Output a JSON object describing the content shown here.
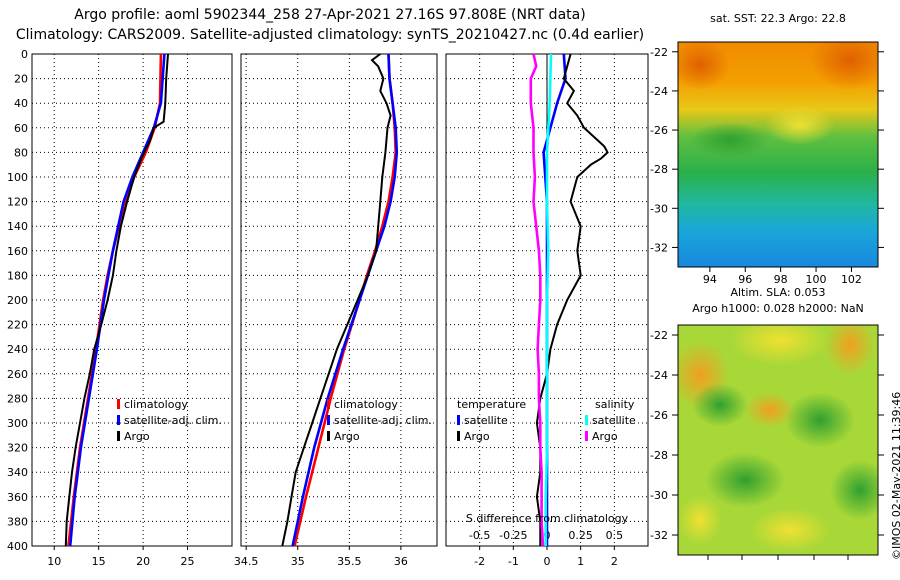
{
  "title_line1": "Argo profile: aoml 5902344_258 27-Apr-2021 27.16S 97.808E (NRT data)",
  "title_line2": "Climatology: CARS2009. Satellite-adjusted climatology: synTS_20210427.nc (0.4d earlier)",
  "colors": {
    "climatology": "#ff0000",
    "satellite_adj": "#0000ff",
    "argo": "#000000",
    "temp_sat": "#0000ff",
    "sal_sat": "#00ffff",
    "sal_argo": "#ff00ff"
  },
  "chart_data": [
    {
      "type": "line",
      "id": "temperature",
      "ylabel": "depth",
      "ylim": [
        400,
        0
      ],
      "xlim": [
        7.5,
        30
      ],
      "yticks": [
        0,
        20,
        40,
        60,
        80,
        100,
        120,
        140,
        160,
        180,
        200,
        220,
        240,
        260,
        280,
        300,
        320,
        340,
        360,
        380,
        400
      ],
      "xticks": [
        10,
        15,
        20,
        25
      ],
      "series": [
        {
          "name": "climatology",
          "color": "#ff0000",
          "depth": [
            0,
            40,
            60,
            80,
            100,
            120,
            140,
            160,
            180,
            200,
            240,
            280,
            320,
            360,
            400
          ],
          "values": [
            22.0,
            21.9,
            21.3,
            20.3,
            19.0,
            18.0,
            17.3,
            16.6,
            16.0,
            15.5,
            14.7,
            13.8,
            12.9,
            12.2,
            11.6
          ]
        },
        {
          "name": "satellite-adj. clim.",
          "color": "#0000ff",
          "depth": [
            0,
            40,
            60,
            80,
            100,
            120,
            140,
            160,
            180,
            200,
            240,
            280,
            320,
            360,
            400
          ],
          "values": [
            22.4,
            22.0,
            21.2,
            20.0,
            18.8,
            17.8,
            17.2,
            16.6,
            16.1,
            15.6,
            14.8,
            13.9,
            13.0,
            12.3,
            11.8
          ]
        },
        {
          "name": "Argo",
          "color": "#000000",
          "depth": [
            0,
            20,
            40,
            55,
            60,
            70,
            85,
            100,
            120,
            140,
            160,
            180,
            200,
            220,
            240,
            260,
            280,
            300,
            320,
            340,
            360,
            380,
            400
          ],
          "values": [
            22.8,
            22.6,
            22.5,
            22.3,
            21.2,
            20.8,
            19.8,
            19.0,
            18.2,
            17.5,
            17.0,
            16.6,
            16.0,
            15.3,
            14.5,
            14.0,
            13.4,
            12.9,
            12.4,
            12.0,
            11.7,
            11.4,
            11.3
          ]
        }
      ],
      "legend": [
        "climatology",
        "satellite-adj. clim.",
        "Argo"
      ]
    },
    {
      "type": "line",
      "id": "salinity",
      "ylim": [
        400,
        0
      ],
      "xlim": [
        34.45,
        36.35
      ],
      "xticks": [
        34.5,
        35,
        35.5,
        36
      ],
      "series": [
        {
          "name": "climatology",
          "color": "#ff0000",
          "depth": [
            0,
            20,
            40,
            60,
            80,
            100,
            120,
            140,
            160,
            180,
            200,
            240,
            280,
            320,
            360,
            400
          ],
          "values": [
            35.88,
            35.89,
            35.92,
            35.94,
            35.95,
            35.92,
            35.88,
            35.82,
            35.75,
            35.67,
            35.6,
            35.45,
            35.32,
            35.2,
            35.08,
            34.97
          ]
        },
        {
          "name": "satellite-adj. clim.",
          "color": "#0000ff",
          "depth": [
            0,
            20,
            40,
            60,
            80,
            100,
            120,
            140,
            160,
            180,
            200,
            240,
            280,
            320,
            360,
            400
          ],
          "values": [
            35.88,
            35.89,
            35.92,
            35.95,
            35.96,
            35.94,
            35.9,
            35.84,
            35.76,
            35.68,
            35.6,
            35.44,
            35.29,
            35.16,
            35.05,
            34.95
          ]
        },
        {
          "name": "Argo",
          "color": "#000000",
          "depth": [
            0,
            5,
            10,
            20,
            30,
            40,
            50,
            60,
            80,
            100,
            120,
            140,
            160,
            180,
            200,
            220,
            240,
            260,
            280,
            300,
            320,
            340,
            360,
            380,
            400
          ],
          "values": [
            35.8,
            35.72,
            35.78,
            35.83,
            35.8,
            35.86,
            35.9,
            35.87,
            35.85,
            35.82,
            35.8,
            35.78,
            35.76,
            35.68,
            35.58,
            35.48,
            35.38,
            35.3,
            35.22,
            35.14,
            35.06,
            34.98,
            34.94,
            34.9,
            34.85
          ]
        }
      ],
      "legend": [
        "climatology",
        "satellite-adj. clim.",
        "Argo"
      ]
    },
    {
      "type": "line",
      "id": "differences",
      "ylim": [
        400,
        0
      ],
      "xlim": [
        -3,
        3
      ],
      "xticks": [
        -2,
        -1,
        0,
        1,
        2
      ],
      "top_xticks": [
        -0.5,
        -0.25,
        0,
        0.25,
        0.5
      ],
      "top_axis_label": "S difference from climatology",
      "series": [
        {
          "name": "temperature satellite",
          "color": "#0000ff",
          "depth": [
            0,
            20,
            40,
            60,
            80,
            100,
            120,
            140,
            160,
            200,
            260,
            320,
            400
          ],
          "values": [
            0.5,
            0.55,
            0.3,
            0.1,
            -0.1,
            -0.05,
            0.0,
            0.0,
            0.0,
            0.0,
            0.0,
            0.0,
            0.0
          ]
        },
        {
          "name": "temperature Argo",
          "color": "#000000",
          "depth": [
            0,
            10,
            20,
            30,
            40,
            50,
            60,
            70,
            75,
            80,
            85,
            90,
            100,
            120,
            140,
            160,
            180,
            200,
            220,
            240,
            260,
            280,
            300,
            320,
            340,
            360,
            380,
            400
          ],
          "values": [
            0.7,
            0.6,
            0.5,
            0.8,
            0.6,
            0.9,
            1.1,
            1.5,
            1.7,
            1.8,
            1.6,
            1.3,
            0.9,
            0.7,
            1.0,
            0.9,
            1.0,
            0.6,
            0.3,
            0.1,
            0.0,
            -0.2,
            -0.3,
            -0.2,
            -0.2,
            -0.3,
            -0.2,
            -0.2
          ]
        },
        {
          "name": "salinity satellite",
          "color": "#00ffff",
          "depth": [
            0,
            40,
            80,
            120,
            160,
            200,
            240,
            280,
            320,
            360,
            400
          ],
          "values": [
            0.03,
            0.02,
            0.0,
            0.0,
            0.01,
            0.0,
            0.0,
            0.0,
            0.0,
            -0.01,
            -0.01
          ]
        },
        {
          "name": "salinity Argo",
          "color": "#ff00ff",
          "depth": [
            0,
            10,
            20,
            40,
            60,
            80,
            100,
            120,
            140,
            160,
            180,
            200,
            220,
            240,
            260,
            280,
            300,
            320,
            340,
            360,
            380,
            400
          ],
          "values": [
            -0.1,
            -0.08,
            -0.12,
            -0.12,
            -0.1,
            -0.1,
            -0.09,
            -0.1,
            -0.08,
            -0.06,
            -0.05,
            -0.05,
            -0.06,
            -0.07,
            -0.06,
            -0.06,
            -0.05,
            -0.05,
            -0.04,
            -0.04,
            -0.04,
            -0.03
          ]
        }
      ],
      "legend_left_title": "temperature",
      "legend_right_title": "salinity",
      "legend_left": [
        "satellite",
        "Argo"
      ],
      "legend_right": [
        "satellite",
        "Argo"
      ]
    },
    {
      "type": "heatmap",
      "id": "sst_map",
      "title": "sat. SST: 22.3 Argo: 22.8",
      "xticks": [
        94,
        96,
        98,
        100,
        102
      ],
      "yticks": [
        -22,
        -24,
        -26,
        -28,
        -30,
        -32
      ],
      "xlim": [
        92.2,
        103.5
      ],
      "ylim": [
        -33.0,
        -21.5
      ]
    },
    {
      "type": "heatmap",
      "id": "sla_map",
      "title": "Altim. SLA: 0.053",
      "subtitle": "Argo h1000: 0.028 h2000: NaN",
      "yticks": [
        -22,
        -24,
        -26,
        -28,
        -30,
        -32
      ],
      "ylim": [
        -33.0,
        -21.5
      ]
    }
  ],
  "credit": "©IMOS 02-May-2021 11:39:46"
}
